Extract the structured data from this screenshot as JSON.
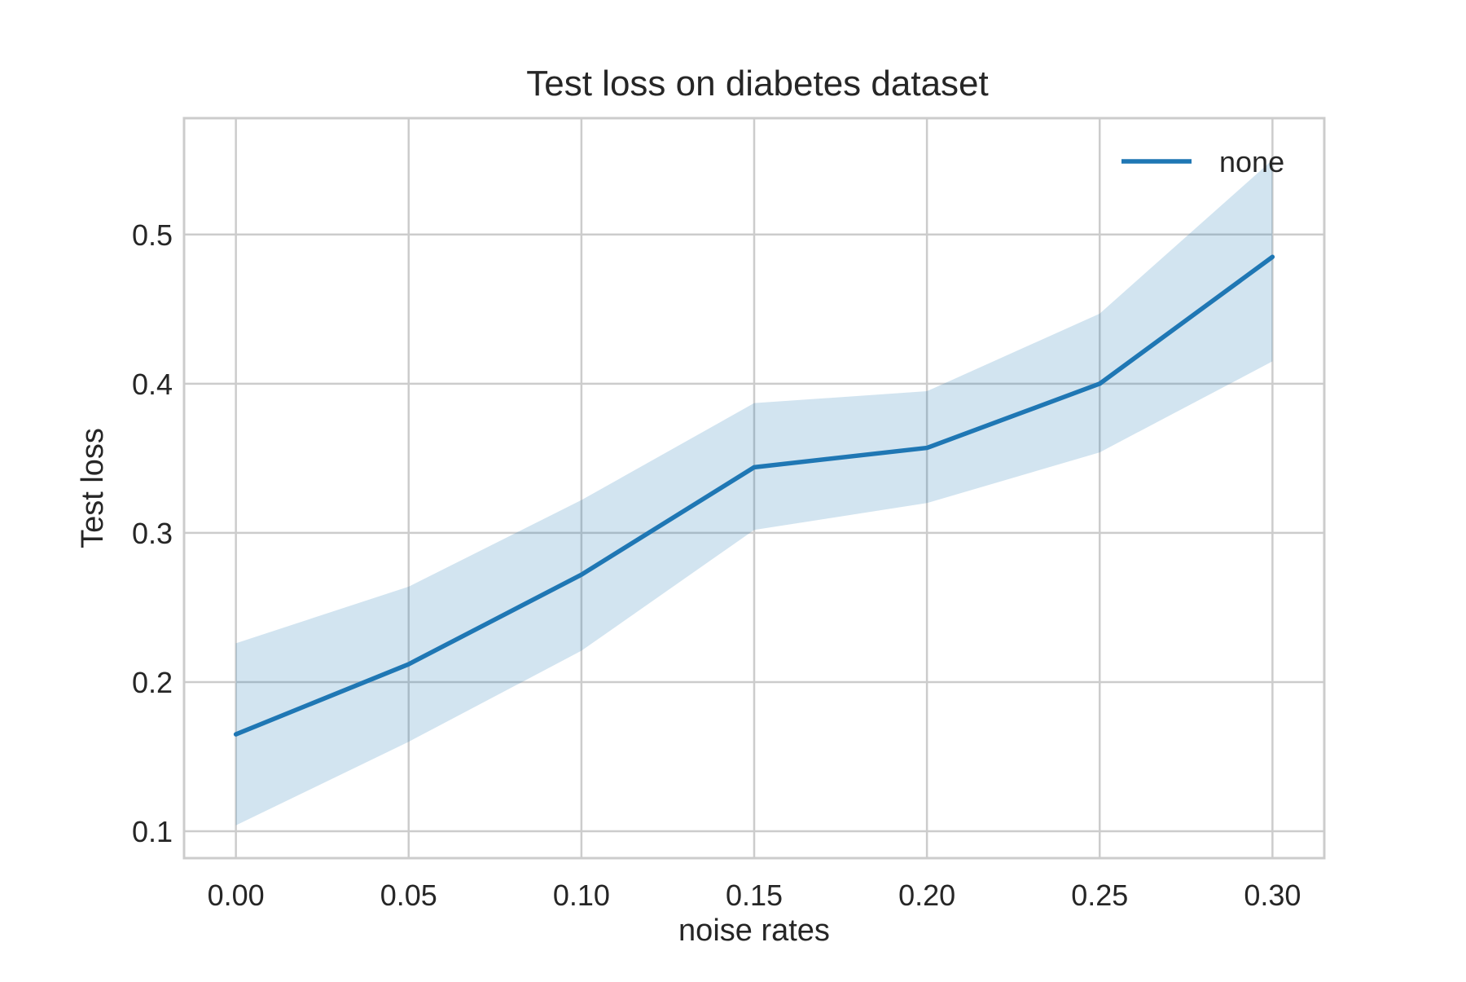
{
  "chart_data": {
    "type": "line",
    "title": "Test loss on diabetes dataset",
    "xlabel": "noise rates",
    "ylabel": "Test loss",
    "x": [
      0.0,
      0.05,
      0.1,
      0.15,
      0.2,
      0.25,
      0.3
    ],
    "x_tick_labels": [
      "0.00",
      "0.05",
      "0.10",
      "0.15",
      "0.20",
      "0.25",
      "0.30"
    ],
    "y_ticks": [
      0.1,
      0.2,
      0.3,
      0.4,
      0.5
    ],
    "y_tick_labels": [
      "0.1",
      "0.2",
      "0.3",
      "0.4",
      "0.5"
    ],
    "xlim": [
      -0.015,
      0.315
    ],
    "ylim": [
      0.082,
      0.578
    ],
    "grid": true,
    "legend_position": "top-right",
    "series": [
      {
        "name": "none",
        "color": "#1f77b4",
        "band_color": "#1f77b4",
        "values": [
          0.165,
          0.212,
          0.272,
          0.344,
          0.357,
          0.4,
          0.485
        ],
        "lower": [
          0.104,
          0.16,
          0.221,
          0.302,
          0.32,
          0.354,
          0.415
        ],
        "upper": [
          0.226,
          0.264,
          0.322,
          0.387,
          0.395,
          0.447,
          0.55
        ]
      }
    ]
  }
}
